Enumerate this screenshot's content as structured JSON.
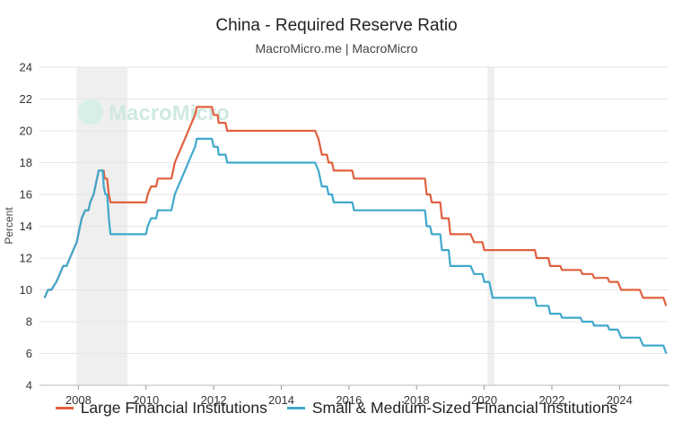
{
  "chart_data": {
    "type": "line",
    "title": "China - Required Reserve Ratio",
    "subtitle": "MacroMicro.me | MacroMicro",
    "watermark": "MacroMicro",
    "ylabel": "Percent",
    "xlim": [
      2006.85,
      2025.45
    ],
    "ylim": [
      4,
      24
    ],
    "yticks": [
      4,
      6,
      8,
      10,
      12,
      14,
      16,
      18,
      20,
      22,
      24
    ],
    "xticks": [
      "2008",
      "2010",
      "2012",
      "2014",
      "2016",
      "2018",
      "2020",
      "2022",
      "2024"
    ],
    "grid": "horizontal",
    "legend_position": "bottom",
    "recession_shading": [
      [
        2007.95,
        2009.45
      ],
      [
        2020.1,
        2020.3
      ]
    ],
    "series": [
      {
        "name": "Large Financial Institutions",
        "color": "#e0603f",
        "points": [
          [
            2007.0,
            9.5
          ],
          [
            2007.1,
            10.0
          ],
          [
            2007.2,
            10.0
          ],
          [
            2007.35,
            10.5
          ],
          [
            2007.45,
            11.0
          ],
          [
            2007.55,
            11.5
          ],
          [
            2007.65,
            11.5
          ],
          [
            2007.75,
            12.0
          ],
          [
            2007.85,
            12.5
          ],
          [
            2007.95,
            13.0
          ],
          [
            2008.0,
            13.5
          ],
          [
            2008.1,
            14.5
          ],
          [
            2008.2,
            15.0
          ],
          [
            2008.3,
            15.0
          ],
          [
            2008.35,
            15.5
          ],
          [
            2008.45,
            16.0
          ],
          [
            2008.5,
            16.5
          ],
          [
            2008.55,
            17.0
          ],
          [
            2008.6,
            17.5
          ],
          [
            2008.75,
            17.5
          ],
          [
            2008.78,
            17.0
          ],
          [
            2008.85,
            17.0
          ],
          [
            2008.9,
            16.0
          ],
          [
            2008.95,
            15.5
          ],
          [
            2010.0,
            15.5
          ],
          [
            2010.05,
            16.0
          ],
          [
            2010.15,
            16.5
          ],
          [
            2010.3,
            16.5
          ],
          [
            2010.35,
            17.0
          ],
          [
            2010.75,
            17.0
          ],
          [
            2010.8,
            17.5
          ],
          [
            2010.85,
            18.0
          ],
          [
            2010.95,
            18.5
          ],
          [
            2011.05,
            19.0
          ],
          [
            2011.15,
            19.5
          ],
          [
            2011.25,
            20.0
          ],
          [
            2011.35,
            20.5
          ],
          [
            2011.45,
            21.0
          ],
          [
            2011.5,
            21.5
          ],
          [
            2011.95,
            21.5
          ],
          [
            2012.0,
            21.0
          ],
          [
            2012.12,
            21.0
          ],
          [
            2012.15,
            20.5
          ],
          [
            2012.35,
            20.5
          ],
          [
            2012.4,
            20.0
          ],
          [
            2015.0,
            20.0
          ],
          [
            2015.1,
            19.5
          ],
          [
            2015.2,
            18.5
          ],
          [
            2015.35,
            18.5
          ],
          [
            2015.4,
            18.0
          ],
          [
            2015.5,
            18.0
          ],
          [
            2015.55,
            17.5
          ],
          [
            2015.75,
            17.5
          ],
          [
            2015.8,
            17.5
          ],
          [
            2016.1,
            17.5
          ],
          [
            2016.15,
            17.0
          ],
          [
            2018.25,
            17.0
          ],
          [
            2018.3,
            16.0
          ],
          [
            2018.4,
            16.0
          ],
          [
            2018.45,
            15.5
          ],
          [
            2018.7,
            15.5
          ],
          [
            2018.75,
            14.5
          ],
          [
            2018.95,
            14.5
          ],
          [
            2019.0,
            13.5
          ],
          [
            2019.6,
            13.5
          ],
          [
            2019.7,
            13.0
          ],
          [
            2019.95,
            13.0
          ],
          [
            2020.0,
            12.5
          ],
          [
            2021.5,
            12.5
          ],
          [
            2021.55,
            12.0
          ],
          [
            2021.9,
            12.0
          ],
          [
            2021.95,
            11.5
          ],
          [
            2022.25,
            11.5
          ],
          [
            2022.3,
            11.25
          ],
          [
            2022.85,
            11.25
          ],
          [
            2022.9,
            11.0
          ],
          [
            2023.2,
            11.0
          ],
          [
            2023.25,
            10.75
          ],
          [
            2023.65,
            10.75
          ],
          [
            2023.7,
            10.5
          ],
          [
            2023.95,
            10.5
          ],
          [
            2024.05,
            10.0
          ],
          [
            2024.6,
            10.0
          ],
          [
            2024.7,
            9.5
          ],
          [
            2025.3,
            9.5
          ],
          [
            2025.38,
            9.0
          ]
        ]
      },
      {
        "name": "Small & Medium-Sized Financial Institutions",
        "color": "#3fa8cc",
        "points": [
          [
            2007.0,
            9.5
          ],
          [
            2007.1,
            10.0
          ],
          [
            2007.2,
            10.0
          ],
          [
            2007.35,
            10.5
          ],
          [
            2007.45,
            11.0
          ],
          [
            2007.55,
            11.5
          ],
          [
            2007.65,
            11.5
          ],
          [
            2007.75,
            12.0
          ],
          [
            2007.85,
            12.5
          ],
          [
            2007.95,
            13.0
          ],
          [
            2008.0,
            13.5
          ],
          [
            2008.1,
            14.5
          ],
          [
            2008.2,
            15.0
          ],
          [
            2008.3,
            15.0
          ],
          [
            2008.35,
            15.5
          ],
          [
            2008.45,
            16.0
          ],
          [
            2008.5,
            16.5
          ],
          [
            2008.55,
            17.0
          ],
          [
            2008.6,
            17.5
          ],
          [
            2008.72,
            17.5
          ],
          [
            2008.75,
            16.5
          ],
          [
            2008.8,
            16.0
          ],
          [
            2008.85,
            16.0
          ],
          [
            2008.9,
            14.5
          ],
          [
            2008.95,
            13.5
          ],
          [
            2010.0,
            13.5
          ],
          [
            2010.05,
            14.0
          ],
          [
            2010.15,
            14.5
          ],
          [
            2010.3,
            14.5
          ],
          [
            2010.35,
            15.0
          ],
          [
            2010.75,
            15.0
          ],
          [
            2010.8,
            15.5
          ],
          [
            2010.85,
            16.0
          ],
          [
            2010.95,
            16.5
          ],
          [
            2011.05,
            17.0
          ],
          [
            2011.15,
            17.5
          ],
          [
            2011.25,
            18.0
          ],
          [
            2011.35,
            18.5
          ],
          [
            2011.45,
            19.0
          ],
          [
            2011.5,
            19.5
          ],
          [
            2011.95,
            19.5
          ],
          [
            2012.0,
            19.0
          ],
          [
            2012.12,
            19.0
          ],
          [
            2012.15,
            18.5
          ],
          [
            2012.35,
            18.5
          ],
          [
            2012.4,
            18.0
          ],
          [
            2015.0,
            18.0
          ],
          [
            2015.1,
            17.5
          ],
          [
            2015.2,
            16.5
          ],
          [
            2015.35,
            16.5
          ],
          [
            2015.4,
            16.0
          ],
          [
            2015.5,
            16.0
          ],
          [
            2015.55,
            15.5
          ],
          [
            2015.75,
            15.5
          ],
          [
            2016.1,
            15.5
          ],
          [
            2016.15,
            15.0
          ],
          [
            2018.25,
            15.0
          ],
          [
            2018.3,
            14.0
          ],
          [
            2018.4,
            14.0
          ],
          [
            2018.45,
            13.5
          ],
          [
            2018.7,
            13.5
          ],
          [
            2018.75,
            12.5
          ],
          [
            2018.95,
            12.5
          ],
          [
            2019.0,
            11.5
          ],
          [
            2019.6,
            11.5
          ],
          [
            2019.7,
            11.0
          ],
          [
            2019.95,
            11.0
          ],
          [
            2020.0,
            10.5
          ],
          [
            2020.15,
            10.5
          ],
          [
            2020.25,
            9.5
          ],
          [
            2021.5,
            9.5
          ],
          [
            2021.55,
            9.0
          ],
          [
            2021.9,
            9.0
          ],
          [
            2021.95,
            8.5
          ],
          [
            2022.25,
            8.5
          ],
          [
            2022.3,
            8.25
          ],
          [
            2022.85,
            8.25
          ],
          [
            2022.9,
            8.0
          ],
          [
            2023.2,
            8.0
          ],
          [
            2023.25,
            7.75
          ],
          [
            2023.65,
            7.75
          ],
          [
            2023.7,
            7.5
          ],
          [
            2023.95,
            7.5
          ],
          [
            2024.05,
            7.0
          ],
          [
            2024.6,
            7.0
          ],
          [
            2024.7,
            6.5
          ],
          [
            2025.3,
            6.5
          ],
          [
            2025.38,
            6.0
          ]
        ]
      }
    ]
  }
}
